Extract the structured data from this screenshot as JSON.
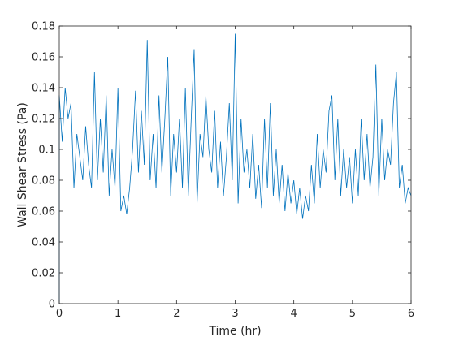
{
  "chart_data": {
    "type": "line",
    "xlabel": "Time (hr)",
    "ylabel": "Wall Shear Stress (Pa)",
    "xlim": [
      0,
      6
    ],
    "xticks": [
      0,
      1,
      2,
      3,
      4,
      5,
      6
    ],
    "ylim": [
      0,
      0.18
    ],
    "yticks": [
      0,
      0.02,
      0.04,
      0.06,
      0.08,
      0.1,
      0.12,
      0.14,
      0.16,
      0.18
    ],
    "x": [
      0,
      0,
      0.05,
      0.1,
      0.15,
      0.2,
      0.25,
      0.3,
      0.35,
      0.4,
      0.45,
      0.5,
      0.55,
      0.6,
      0.65,
      0.7,
      0.75,
      0.8,
      0.85,
      0.9,
      0.95,
      1,
      1.05,
      1.1,
      1.15,
      1.2,
      1.25,
      1.3,
      1.35,
      1.4,
      1.45,
      1.5,
      1.55,
      1.6,
      1.65,
      1.7,
      1.75,
      1.8,
      1.85,
      1.9,
      1.95,
      2,
      2.05,
      2.1,
      2.15,
      2.2,
      2.25,
      2.3,
      2.35,
      2.4,
      2.45,
      2.5,
      2.55,
      2.6,
      2.65,
      2.7,
      2.75,
      2.8,
      2.85,
      2.9,
      2.95,
      3,
      3.05,
      3.1,
      3.15,
      3.2,
      3.25,
      3.3,
      3.35,
      3.4,
      3.45,
      3.5,
      3.55,
      3.6,
      3.65,
      3.7,
      3.75,
      3.8,
      3.85,
      3.9,
      3.95,
      4,
      4.05,
      4.1,
      4.15,
      4.2,
      4.25,
      4.3,
      4.35,
      4.4,
      4.45,
      4.5,
      4.55,
      4.6,
      4.65,
      4.7,
      4.75,
      4.8,
      4.85,
      4.9,
      4.95,
      5,
      5.05,
      5.1,
      5.15,
      5.2,
      5.25,
      5.3,
      5.35,
      5.4,
      5.45,
      5.5,
      5.55,
      5.6,
      5.65,
      5.7,
      5.75,
      5.8,
      5.85,
      5.9,
      5.95,
      6
    ],
    "series": [
      {
        "color": "#0072bd",
        "values": [
          0,
          0.135,
          0.105,
          0.14,
          0.12,
          0.13,
          0.075,
          0.11,
          0.095,
          0.08,
          0.115,
          0.09,
          0.075,
          0.15,
          0.08,
          0.12,
          0.085,
          0.135,
          0.07,
          0.1,
          0.075,
          0.14,
          0.06,
          0.07,
          0.058,
          0.075,
          0.1,
          0.138,
          0.085,
          0.125,
          0.09,
          0.171,
          0.08,
          0.11,
          0.075,
          0.135,
          0.085,
          0.12,
          0.16,
          0.07,
          0.11,
          0.085,
          0.12,
          0.075,
          0.14,
          0.07,
          0.12,
          0.165,
          0.065,
          0.11,
          0.095,
          0.135,
          0.1,
          0.085,
          0.125,
          0.075,
          0.105,
          0.07,
          0.095,
          0.13,
          0.08,
          0.175,
          0.065,
          0.12,
          0.085,
          0.1,
          0.075,
          0.11,
          0.068,
          0.09,
          0.062,
          0.12,
          0.075,
          0.13,
          0.07,
          0.1,
          0.065,
          0.09,
          0.06,
          0.085,
          0.065,
          0.08,
          0.058,
          0.075,
          0.055,
          0.07,
          0.06,
          0.09,
          0.065,
          0.11,
          0.075,
          0.1,
          0.085,
          0.125,
          0.135,
          0.08,
          0.12,
          0.07,
          0.1,
          0.075,
          0.095,
          0.065,
          0.1,
          0.07,
          0.12,
          0.08,
          0.11,
          0.075,
          0.095,
          0.155,
          0.07,
          0.12,
          0.08,
          0.1,
          0.09,
          0.13,
          0.15,
          0.075,
          0.09,
          0.065,
          0.075,
          0.07
        ]
      }
    ]
  }
}
